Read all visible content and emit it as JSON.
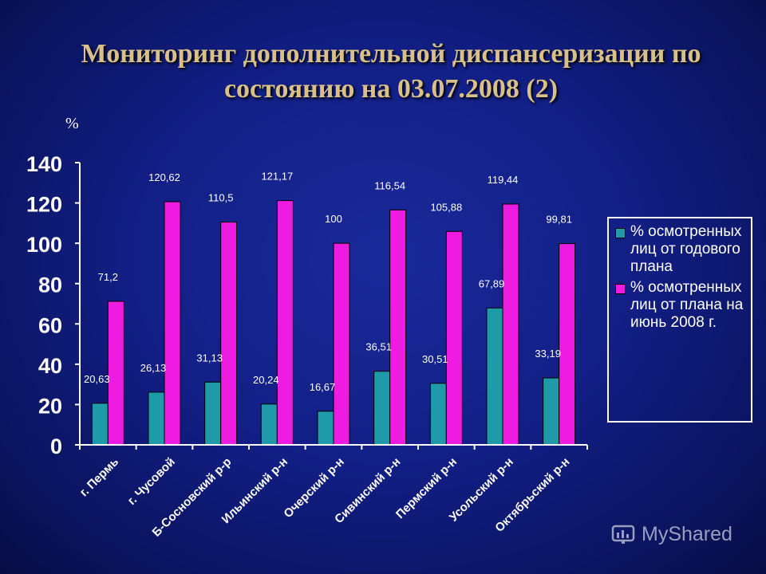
{
  "header": {
    "title_line1": "Мониторинг дополнительной диспансеризации по",
    "title_line2": "состоянию на 03.07.2008 (2)"
  },
  "unit_label": "%",
  "watermark": "MyShared",
  "colors": {
    "series1": "#1f9aa8",
    "series2": "#ee1ce0",
    "axis": "#ffffff",
    "text": "#ffffff",
    "title": "#d8c088"
  },
  "chart_data": {
    "type": "bar",
    "categories": [
      "г. Пермь",
      "г. Чусовой",
      "Б-Сосновский р-р",
      "Ильинский р-н",
      "Очерский р-н",
      "Сивинский р-н",
      "Пермский р-н",
      "Усольский р-н",
      "Октябрьский р-н"
    ],
    "series": [
      {
        "name": "% осмотренных лиц от годового плана",
        "values": [
          20.63,
          26.13,
          31.13,
          20.24,
          16.67,
          36.51,
          30.51,
          67.89,
          33.19
        ],
        "labels": [
          "20,63",
          "26,13",
          "31,13",
          "20,24",
          "16,67",
          "36,51",
          "30,51",
          "67,89",
          "33,19"
        ]
      },
      {
        "name": "% осмотренных лиц от плана на июнь 2008 г.",
        "values": [
          71.2,
          120.62,
          110.5,
          121.17,
          100,
          116.54,
          105.88,
          119.44,
          99.81
        ],
        "labels": [
          "71,2",
          "120,62",
          "110,5",
          "121,17",
          "100",
          "116,54",
          "105,88",
          "119,44",
          "99,81"
        ]
      }
    ],
    "ylim": [
      0,
      140
    ],
    "yticks": [
      "0",
      "20",
      "40",
      "60",
      "80",
      "100",
      "120",
      "140"
    ],
    "legend_position": "right",
    "grid": false
  }
}
